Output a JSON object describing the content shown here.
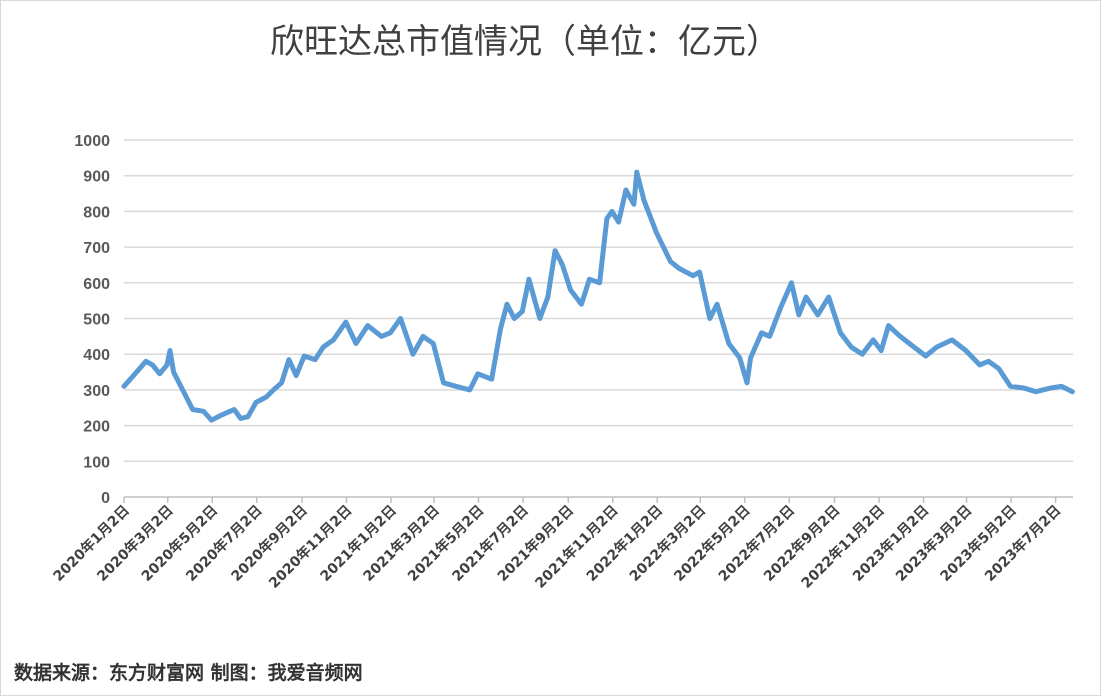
{
  "chart_data": {
    "type": "line",
    "title": "欣旺达总市值情况（单位：亿元）",
    "xlabel": "",
    "ylabel": "",
    "ylim": [
      0,
      1000
    ],
    "yticks": [
      "0",
      "100",
      "200",
      "300",
      "400",
      "500",
      "600",
      "700",
      "800",
      "900",
      "1000"
    ],
    "xticks": [
      "2020年1月2日",
      "2020年3月2日",
      "2020年5月2日",
      "2020年7月2日",
      "2020年9月2日",
      "2020年11月2日",
      "2021年1月2日",
      "2021年3月2日",
      "2021年5月2日",
      "2021年7月2日",
      "2021年9月2日",
      "2021年11月2日",
      "2022年1月2日",
      "2022年3月2日",
      "2022年5月2日",
      "2022年7月2日",
      "2022年9月2日",
      "2022年11月2日",
      "2023年1月2日",
      "2023年3月2日",
      "2023年5月2日",
      "2023年7月2日"
    ],
    "xtick_dates": [
      "2020-01-02",
      "2020-03-02",
      "2020-05-02",
      "2020-07-02",
      "2020-09-02",
      "2020-11-02",
      "2021-01-02",
      "2021-03-02",
      "2021-05-02",
      "2021-07-02",
      "2021-09-02",
      "2021-11-02",
      "2022-01-02",
      "2022-03-02",
      "2022-05-02",
      "2022-07-02",
      "2022-09-02",
      "2022-11-02",
      "2023-01-02",
      "2023-03-02",
      "2023-05-02",
      "2023-07-02"
    ],
    "grid": true,
    "line_color": "#5b9bd5",
    "series": [
      {
        "x": [
          "2020-01-02",
          "2020-01-15",
          "2020-02-01",
          "2020-02-10",
          "2020-02-20",
          "2020-03-01",
          "2020-03-05",
          "2020-03-10",
          "2020-03-25",
          "2020-04-05",
          "2020-04-20",
          "2020-05-01",
          "2020-05-15",
          "2020-06-01",
          "2020-06-10",
          "2020-06-20",
          "2020-07-01",
          "2020-07-15",
          "2020-07-25",
          "2020-08-05",
          "2020-08-15",
          "2020-08-25",
          "2020-09-05",
          "2020-09-20",
          "2020-10-01",
          "2020-10-15",
          "2020-11-01",
          "2020-11-15",
          "2020-12-01",
          "2020-12-20",
          "2021-01-01",
          "2021-01-15",
          "2021-02-01",
          "2021-02-15",
          "2021-03-01",
          "2021-03-15",
          "2021-04-01",
          "2021-04-20",
          "2021-05-01",
          "2021-05-20",
          "2021-06-01",
          "2021-06-10",
          "2021-06-20",
          "2021-07-01",
          "2021-07-10",
          "2021-07-25",
          "2021-08-05",
          "2021-08-15",
          "2021-08-25",
          "2021-09-05",
          "2021-09-20",
          "2021-10-01",
          "2021-10-15",
          "2021-10-25",
          "2021-11-01",
          "2021-11-10",
          "2021-11-20",
          "2021-12-01",
          "2021-12-05",
          "2021-12-15",
          "2022-01-01",
          "2022-01-20",
          "2022-02-01",
          "2022-02-20",
          "2022-03-01",
          "2022-03-15",
          "2022-03-25",
          "2022-04-10",
          "2022-04-25",
          "2022-05-05",
          "2022-05-10",
          "2022-05-25",
          "2022-06-05",
          "2022-06-20",
          "2022-07-05",
          "2022-07-15",
          "2022-07-25",
          "2022-08-10",
          "2022-08-25",
          "2022-09-10",
          "2022-09-25",
          "2022-10-10",
          "2022-10-25",
          "2022-11-05",
          "2022-11-15",
          "2022-12-01",
          "2022-12-20",
          "2023-01-05",
          "2023-01-20",
          "2023-02-10",
          "2023-03-01",
          "2023-03-20",
          "2023-04-01",
          "2023-04-15",
          "2023-05-01",
          "2023-05-20",
          "2023-06-05",
          "2023-06-25",
          "2023-07-10",
          "2023-07-25"
        ],
        "values": [
          310,
          340,
          380,
          370,
          345,
          370,
          410,
          350,
          290,
          245,
          240,
          215,
          230,
          245,
          220,
          225,
          265,
          280,
          300,
          320,
          385,
          340,
          395,
          385,
          420,
          440,
          490,
          430,
          480,
          450,
          460,
          500,
          400,
          450,
          430,
          320,
          310,
          300,
          345,
          330,
          470,
          540,
          500,
          520,
          610,
          500,
          560,
          690,
          650,
          580,
          540,
          610,
          600,
          780,
          800,
          770,
          860,
          820,
          910,
          830,
          740,
          660,
          640,
          620,
          630,
          500,
          540,
          430,
          390,
          320,
          390,
          460,
          450,
          530,
          600,
          510,
          560,
          510,
          560,
          460,
          420,
          400,
          440,
          410,
          480,
          450,
          420,
          395,
          420,
          440,
          410,
          370,
          380,
          360,
          310,
          305,
          295,
          305,
          310,
          295
        ]
      }
    ]
  },
  "source": "数据来源：东方财富网 制图：我爱音频网"
}
